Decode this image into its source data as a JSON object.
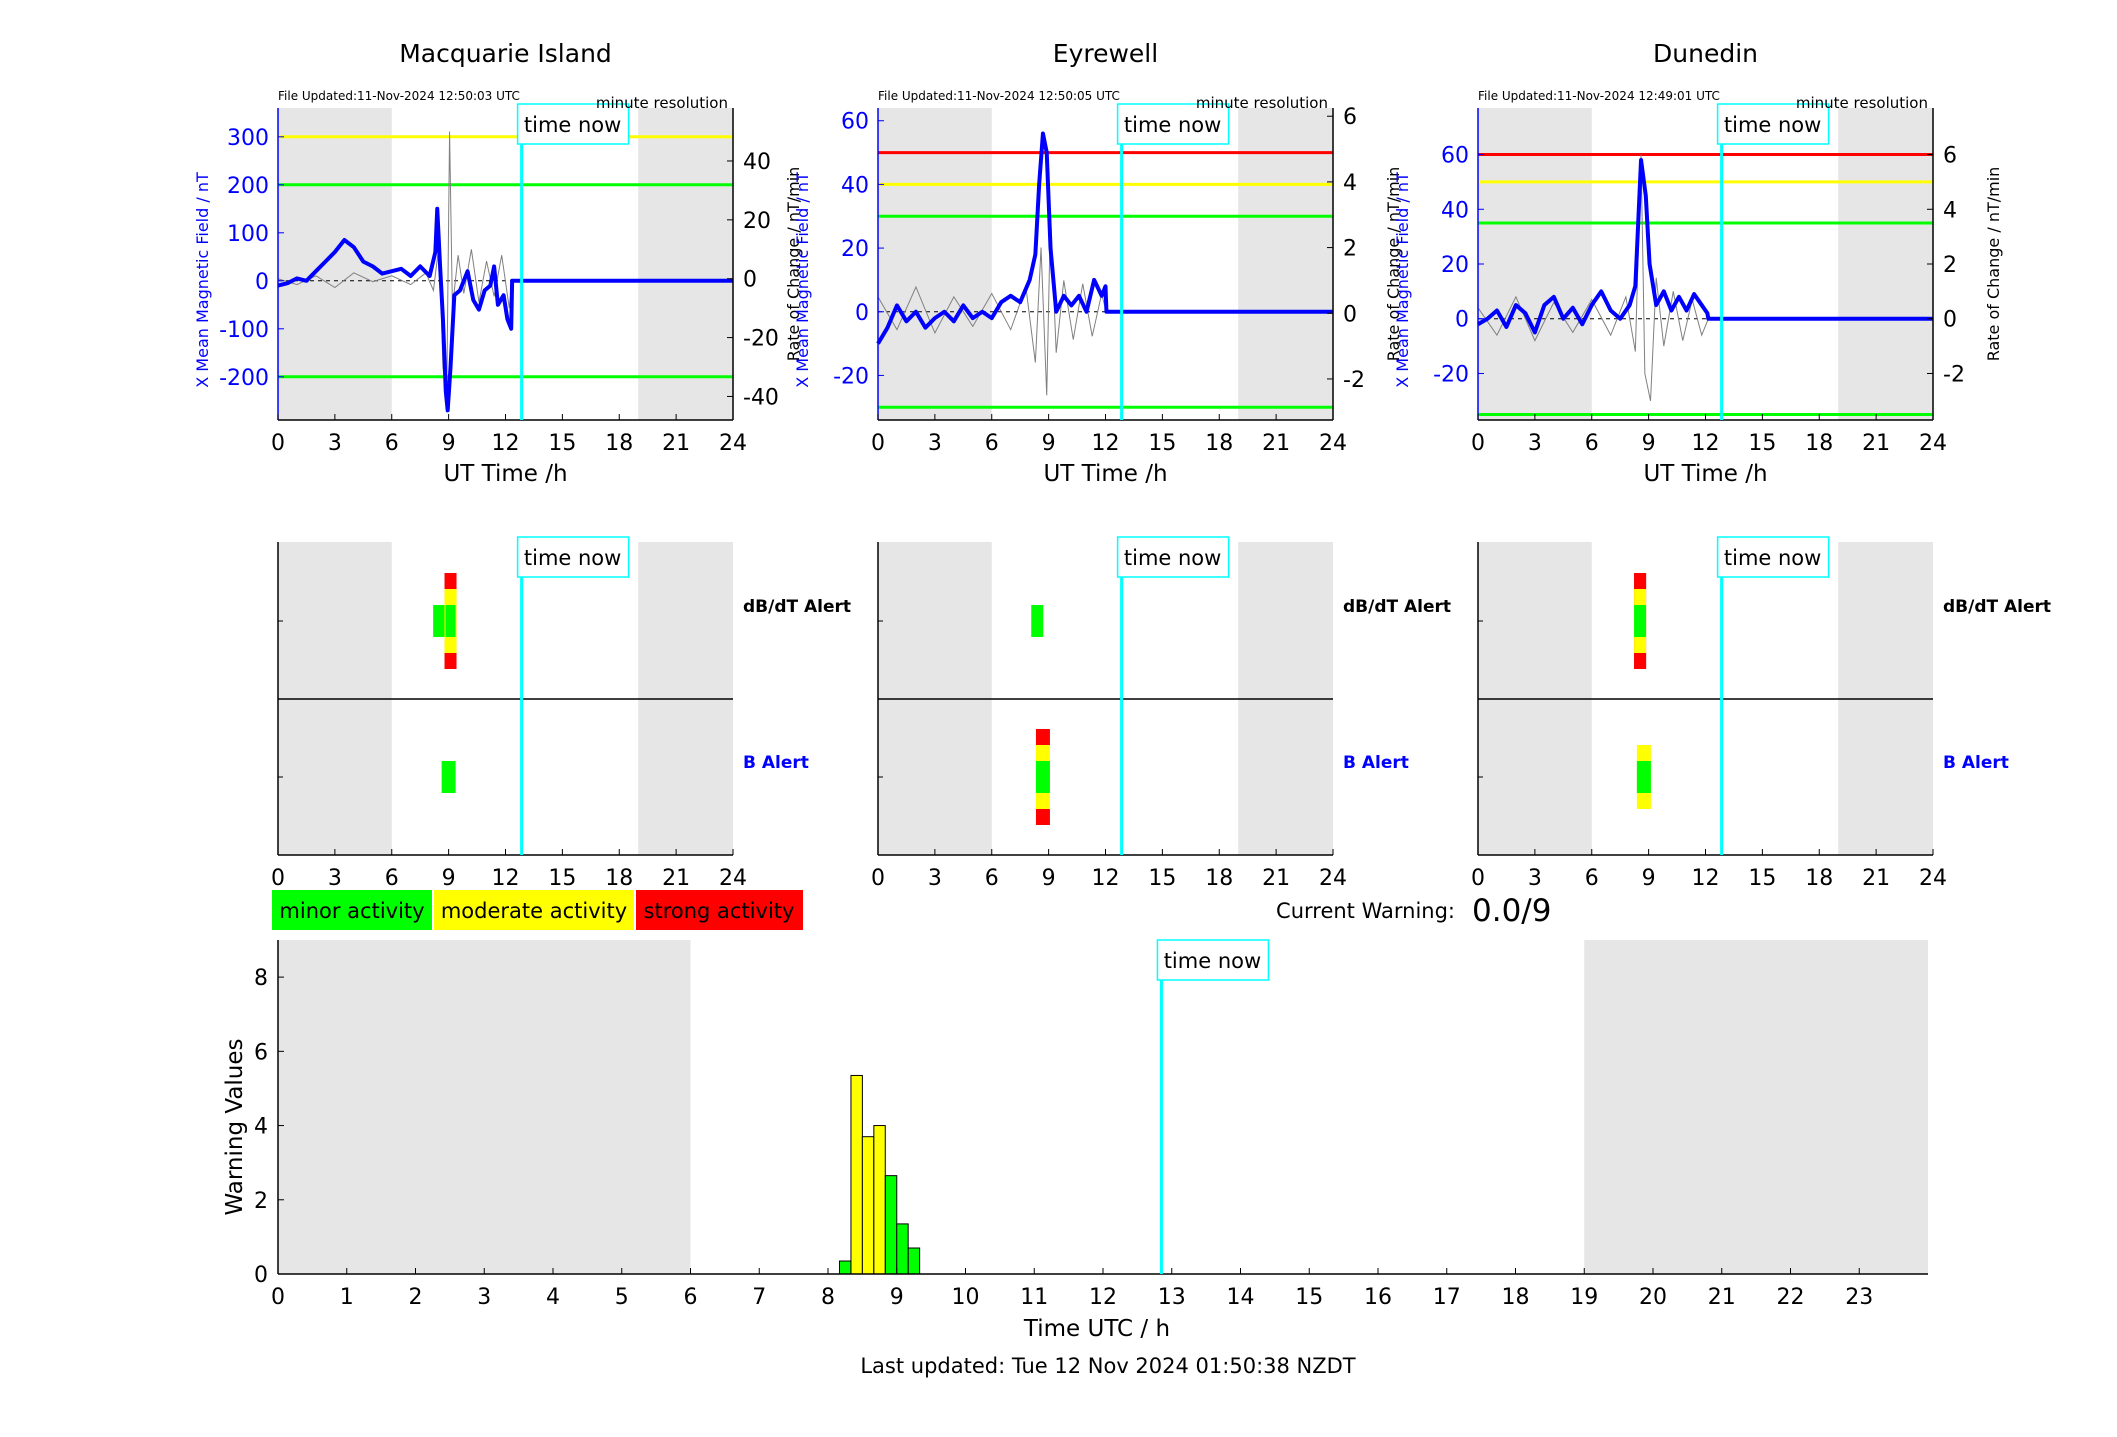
{
  "colors": {
    "minor": "#00ff00",
    "moderate": "#ffff00",
    "strong": "#ff0000",
    "mean_field": "#0000ff",
    "rate_of_change": "#808080",
    "time_now": "#00ffff",
    "night_shading": "#e6e6e6",
    "b_alert_label": "#0000ff"
  },
  "time_now_label": "time now",
  "time_now_hour": 12.85,
  "night_ranges_h": [
    [
      0,
      6
    ],
    [
      19,
      24
    ]
  ],
  "legend": {
    "minor": "minor activity",
    "moderate": "moderate activity",
    "strong": "strong activity"
  },
  "current_warning": {
    "label": "Current Warning:",
    "value": "0.0/9"
  },
  "footer": "Last updated: Tue 12 Nov 2024 01:50:38 NZDT",
  "alert_rows": {
    "dbdt": "dB/dT Alert",
    "b": "B Alert"
  },
  "chart_data": [
    {
      "type": "line",
      "title": "Macquarie Island",
      "file_updated": "File Updated:11-Nov-2024 12:50:03 UTC",
      "resolution": "minute resolution",
      "xlabel": "UT Time /h",
      "ylabel_left": "X Mean Magnetic Field / nT",
      "ylabel_right": "Rate of Change / nT/min",
      "xlim": [
        0,
        24
      ],
      "xticks": [
        0,
        3,
        6,
        9,
        12,
        15,
        18,
        21,
        24
      ],
      "ylim_left": [
        -290,
        360
      ],
      "yticks_left": [
        -200,
        -100,
        0,
        100,
        200,
        300
      ],
      "ylim_right": [
        -48,
        58
      ],
      "yticks_right": [
        -40,
        -20,
        0,
        20,
        40
      ],
      "thresholds": [
        {
          "level": "moderate",
          "value": 300
        },
        {
          "level": "minor",
          "value": 200
        },
        {
          "level": "minor",
          "value": -200
        }
      ],
      "series_mean": [
        [
          0,
          -10
        ],
        [
          0.5,
          -5
        ],
        [
          1,
          5
        ],
        [
          1.5,
          0
        ],
        [
          2,
          20
        ],
        [
          2.5,
          40
        ],
        [
          3,
          60
        ],
        [
          3.5,
          85
        ],
        [
          4,
          70
        ],
        [
          4.5,
          40
        ],
        [
          5,
          30
        ],
        [
          5.5,
          15
        ],
        [
          6,
          20
        ],
        [
          6.5,
          25
        ],
        [
          7,
          10
        ],
        [
          7.5,
          30
        ],
        [
          8,
          10
        ],
        [
          8.3,
          60
        ],
        [
          8.4,
          150
        ],
        [
          8.55,
          30
        ],
        [
          8.7,
          -80
        ],
        [
          8.85,
          -230
        ],
        [
          8.95,
          -270
        ],
        [
          9.1,
          -180
        ],
        [
          9.3,
          -30
        ],
        [
          9.6,
          -20
        ],
        [
          10,
          20
        ],
        [
          10.3,
          -40
        ],
        [
          10.6,
          -60
        ],
        [
          10.9,
          -20
        ],
        [
          11.2,
          -10
        ],
        [
          11.4,
          30
        ],
        [
          11.6,
          -50
        ],
        [
          11.9,
          -30
        ],
        [
          12.1,
          -80
        ],
        [
          12.3,
          -100
        ],
        [
          12.35,
          0
        ],
        [
          24,
          0
        ]
      ],
      "series_rate": [
        [
          0,
          0
        ],
        [
          1,
          -2
        ],
        [
          2,
          1
        ],
        [
          3,
          -3
        ],
        [
          4,
          2
        ],
        [
          5,
          -1
        ],
        [
          6,
          1
        ],
        [
          7,
          -2
        ],
        [
          7.8,
          2
        ],
        [
          8.2,
          -4
        ],
        [
          8.5,
          12
        ],
        [
          8.7,
          -30
        ],
        [
          8.9,
          -40
        ],
        [
          9.05,
          50
        ],
        [
          9.2,
          -10
        ],
        [
          9.5,
          8
        ],
        [
          9.8,
          -5
        ],
        [
          10.2,
          10
        ],
        [
          10.6,
          -8
        ],
        [
          11,
          6
        ],
        [
          11.4,
          -6
        ],
        [
          11.8,
          8
        ],
        [
          12.2,
          -10
        ],
        [
          12.35,
          0
        ]
      ],
      "alerts": {
        "dbdt": [
          {
            "hour": 8.5,
            "level": "minor",
            "count": 2
          },
          {
            "hour": 9.1,
            "level": "moderate",
            "count": 4
          }
        ],
        "b": [
          {
            "hour": 9.0,
            "level": "minor",
            "count": 2
          }
        ]
      }
    },
    {
      "type": "line",
      "title": "Eyrewell",
      "file_updated": "File Updated:11-Nov-2024 12:50:05 UTC",
      "resolution": "minute resolution",
      "xlabel": "UT Time /h",
      "ylabel_left": "X Mean Magnetic Field / nT",
      "ylabel_right": "Rate of Change / nT/min",
      "xlim": [
        0,
        24
      ],
      "xticks": [
        0,
        3,
        6,
        9,
        12,
        15,
        18,
        21,
        24
      ],
      "ylim_left": [
        -34,
        64
      ],
      "yticks_left": [
        -20,
        0,
        20,
        40,
        60
      ],
      "ylim_right": [
        -3.25,
        6.25
      ],
      "yticks_right": [
        -2,
        0,
        2,
        4,
        6
      ],
      "thresholds": [
        {
          "level": "strong",
          "value": 50
        },
        {
          "level": "moderate",
          "value": 40
        },
        {
          "level": "minor",
          "value": 30
        },
        {
          "level": "minor",
          "value": -30
        }
      ],
      "series_mean": [
        [
          0,
          -10
        ],
        [
          0.5,
          -5
        ],
        [
          1,
          2
        ],
        [
          1.5,
          -3
        ],
        [
          2,
          0
        ],
        [
          2.5,
          -5
        ],
        [
          3,
          -2
        ],
        [
          3.5,
          0
        ],
        [
          4,
          -3
        ],
        [
          4.5,
          2
        ],
        [
          5,
          -2
        ],
        [
          5.5,
          0
        ],
        [
          6,
          -2
        ],
        [
          6.5,
          3
        ],
        [
          7,
          5
        ],
        [
          7.5,
          3
        ],
        [
          8,
          10
        ],
        [
          8.3,
          18
        ],
        [
          8.5,
          40
        ],
        [
          8.7,
          56
        ],
        [
          8.9,
          50
        ],
        [
          9.1,
          20
        ],
        [
          9.4,
          0
        ],
        [
          9.8,
          5
        ],
        [
          10.2,
          2
        ],
        [
          10.6,
          5
        ],
        [
          11,
          0
        ],
        [
          11.4,
          10
        ],
        [
          11.8,
          5
        ],
        [
          12,
          8
        ],
        [
          12.05,
          0
        ],
        [
          24,
          0
        ]
      ],
      "series_rate": [
        [
          0,
          0.5
        ],
        [
          1,
          -0.5
        ],
        [
          2,
          0.8
        ],
        [
          3,
          -0.6
        ],
        [
          4,
          0.5
        ],
        [
          5,
          -0.4
        ],
        [
          6,
          0.6
        ],
        [
          7,
          -0.5
        ],
        [
          7.8,
          0.8
        ],
        [
          8.3,
          -1.5
        ],
        [
          8.6,
          2
        ],
        [
          8.9,
          -2.5
        ],
        [
          9.1,
          3
        ],
        [
          9.4,
          -1.2
        ],
        [
          9.8,
          1
        ],
        [
          10.3,
          -0.8
        ],
        [
          10.8,
          0.9
        ],
        [
          11.3,
          -0.7
        ],
        [
          11.8,
          0.6
        ],
        [
          12.05,
          0
        ]
      ],
      "alerts": {
        "dbdt": [
          {
            "hour": 8.4,
            "level": "minor",
            "count": 2
          }
        ],
        "b": [
          {
            "hour": 8.7,
            "level": "minor",
            "count": 3
          }
        ]
      }
    },
    {
      "type": "line",
      "title": "Dunedin",
      "file_updated": "File Updated:11-Nov-2024 12:49:01 UTC",
      "resolution": "minute resolution",
      "xlabel": "UT Time /h",
      "ylabel_left": "X Mean Magnetic Field / nT",
      "ylabel_right": "Rate of Change / nT/min",
      "xlim": [
        0,
        24
      ],
      "xticks": [
        0,
        3,
        6,
        9,
        12,
        15,
        18,
        21,
        24
      ],
      "ylim_left": [
        -37,
        77
      ],
      "yticks_left": [
        -20,
        0,
        20,
        40,
        60
      ],
      "ylim_right": [
        -3.7,
        7.7
      ],
      "yticks_right": [
        -2,
        0,
        2,
        4,
        6
      ],
      "thresholds": [
        {
          "level": "strong",
          "value": 60
        },
        {
          "level": "moderate",
          "value": 50
        },
        {
          "level": "minor",
          "value": 35
        },
        {
          "level": "minor",
          "value": -35
        }
      ],
      "series_mean": [
        [
          0,
          -2
        ],
        [
          0.5,
          0
        ],
        [
          1,
          3
        ],
        [
          1.5,
          -3
        ],
        [
          2,
          5
        ],
        [
          2.5,
          2
        ],
        [
          3,
          -5
        ],
        [
          3.5,
          5
        ],
        [
          4,
          8
        ],
        [
          4.5,
          0
        ],
        [
          5,
          4
        ],
        [
          5.5,
          -2
        ],
        [
          6,
          5
        ],
        [
          6.5,
          10
        ],
        [
          7,
          3
        ],
        [
          7.5,
          0
        ],
        [
          8,
          5
        ],
        [
          8.3,
          12
        ],
        [
          8.6,
          58
        ],
        [
          8.85,
          45
        ],
        [
          9.05,
          20
        ],
        [
          9.4,
          5
        ],
        [
          9.8,
          10
        ],
        [
          10.2,
          3
        ],
        [
          10.6,
          8
        ],
        [
          11,
          3
        ],
        [
          11.4,
          9
        ],
        [
          11.8,
          5
        ],
        [
          12.1,
          2
        ],
        [
          12.15,
          0
        ],
        [
          24,
          0
        ]
      ],
      "series_rate": [
        [
          0,
          0.4
        ],
        [
          1,
          -0.6
        ],
        [
          2,
          0.8
        ],
        [
          3,
          -0.8
        ],
        [
          4,
          0.6
        ],
        [
          5,
          -0.5
        ],
        [
          6,
          0.7
        ],
        [
          7,
          -0.6
        ],
        [
          7.8,
          0.8
        ],
        [
          8.3,
          -1.2
        ],
        [
          8.6,
          6
        ],
        [
          8.8,
          -2
        ],
        [
          9.1,
          -3
        ],
        [
          9.4,
          1.5
        ],
        [
          9.8,
          -1
        ],
        [
          10.3,
          1
        ],
        [
          10.8,
          -0.8
        ],
        [
          11.3,
          0.7
        ],
        [
          11.8,
          -0.6
        ],
        [
          12.15,
          0
        ]
      ],
      "alerts": {
        "dbdt": [
          {
            "hour": 8.55,
            "level": "minor",
            "count": 4
          }
        ],
        "b": [
          {
            "hour": 8.75,
            "level": "minor",
            "count": 3
          }
        ]
      }
    },
    {
      "type": "bar",
      "title": "",
      "xlabel": "Time UTC / h",
      "ylabel": "Warning Values",
      "xlim": [
        0,
        24
      ],
      "xticks": [
        0,
        1,
        2,
        3,
        4,
        5,
        6,
        7,
        8,
        9,
        10,
        11,
        12,
        13,
        14,
        15,
        16,
        17,
        18,
        19,
        20,
        21,
        22,
        23
      ],
      "ylim": [
        0,
        9
      ],
      "yticks": [
        0,
        2,
        4,
        6,
        8
      ],
      "bar_width_h": 0.166,
      "bars": [
        {
          "x": 8.25,
          "value": 0.35,
          "level": "minor"
        },
        {
          "x": 8.417,
          "value": 5.35,
          "level": "moderate"
        },
        {
          "x": 8.583,
          "value": 3.7,
          "level": "moderate"
        },
        {
          "x": 8.75,
          "value": 4.0,
          "level": "moderate"
        },
        {
          "x": 8.917,
          "value": 2.65,
          "level": "minor"
        },
        {
          "x": 9.083,
          "value": 1.35,
          "level": "minor"
        },
        {
          "x": 9.25,
          "value": 0.7,
          "level": "minor"
        }
      ]
    }
  ]
}
